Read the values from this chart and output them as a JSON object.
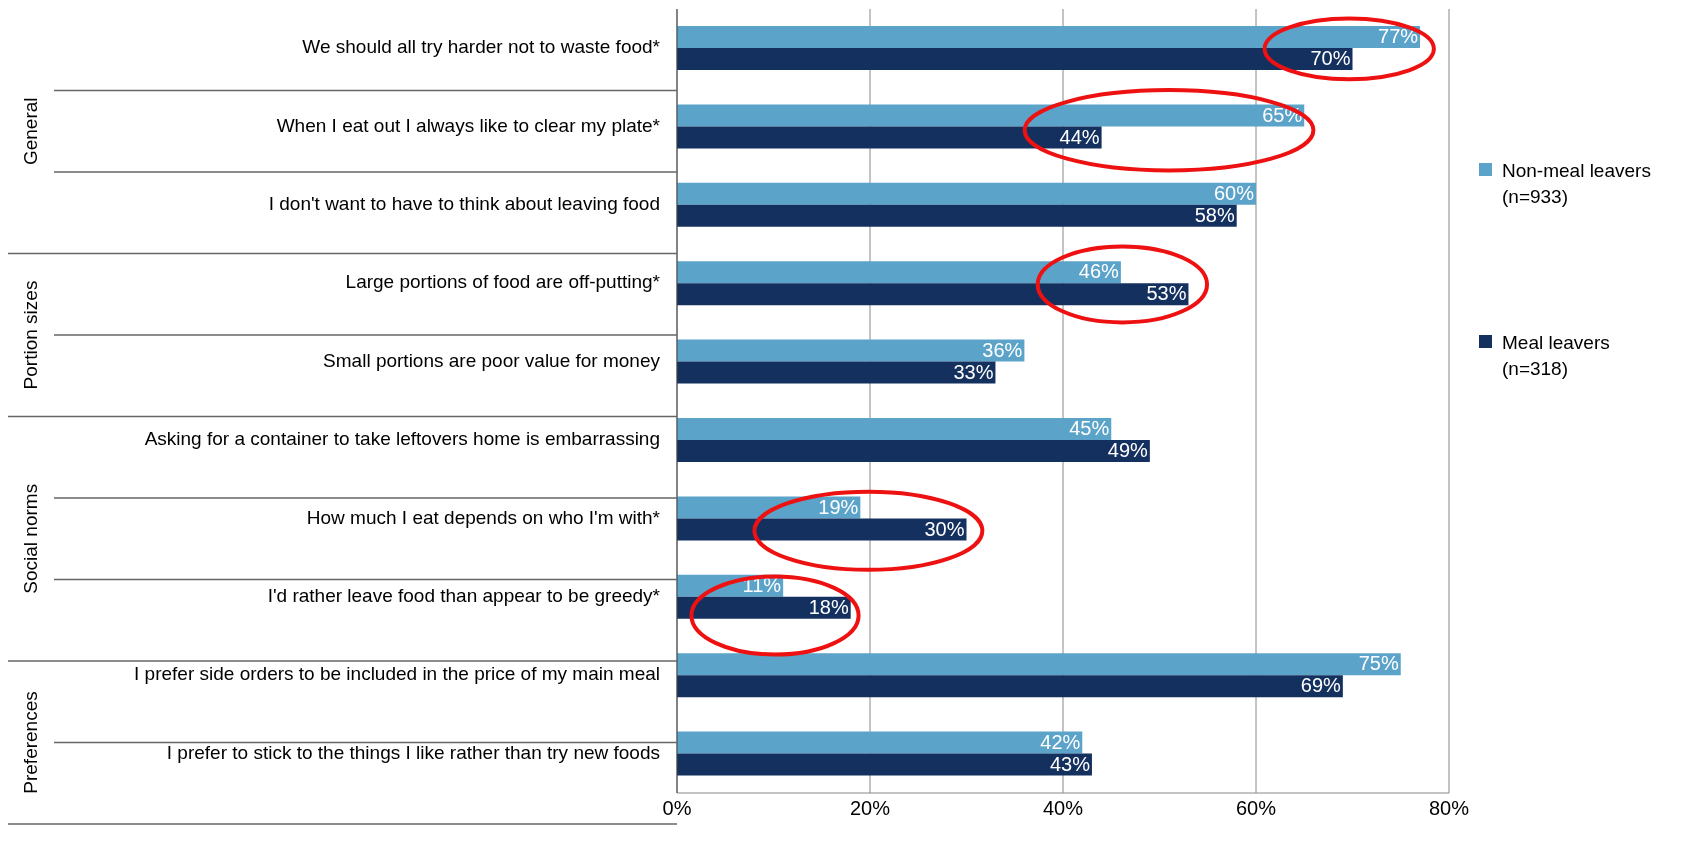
{
  "chart_data": {
    "type": "bar",
    "orientation": "horizontal",
    "categories": [
      "We should all try harder not to waste food*",
      "When I eat out I always like to clear my plate*",
      "I don't want to have to think about leaving food",
      "Large portions of food are off-putting*",
      "Small portions are poor value for money",
      "Asking for a container to take leftovers home is embarrassing",
      "How much I eat depends on who I'm with*",
      "I'd rather leave food than appear to be greedy*",
      "I prefer side orders to be included in the price of my main meal",
      "I prefer to stick to the things I like rather than try new foods"
    ],
    "series": [
      {
        "name": "Non-meal leavers (n=933)",
        "color": "#5ba3c9",
        "values": [
          77,
          65,
          60,
          46,
          36,
          45,
          19,
          11,
          75,
          42
        ],
        "value_labels": [
          "77%",
          "65%",
          "60%",
          "46%",
          "36%",
          "45%",
          "19%",
          "11%",
          "75%",
          "42%"
        ]
      },
      {
        "name": "Meal leavers (n=318)",
        "color": "#14305f",
        "values": [
          70,
          44,
          58,
          53,
          33,
          49,
          30,
          18,
          69,
          43
        ],
        "value_labels": [
          "70%",
          "44%",
          "58%",
          "53%",
          "33%",
          "49%",
          "30%",
          "18%",
          "69%",
          "43%"
        ]
      }
    ],
    "xlim": [
      0,
      80
    ],
    "xticks": [
      {
        "value": 0,
        "label": "0%"
      },
      {
        "value": 20,
        "label": "20%"
      },
      {
        "value": 40,
        "label": "40%"
      },
      {
        "value": 60,
        "label": "60%"
      },
      {
        "value": 80,
        "label": "80%"
      }
    ],
    "annotations": [
      "General",
      "Portion sizes",
      "Social norms",
      "Preferences"
    ],
    "grid": "x",
    "legend": "right"
  }
}
